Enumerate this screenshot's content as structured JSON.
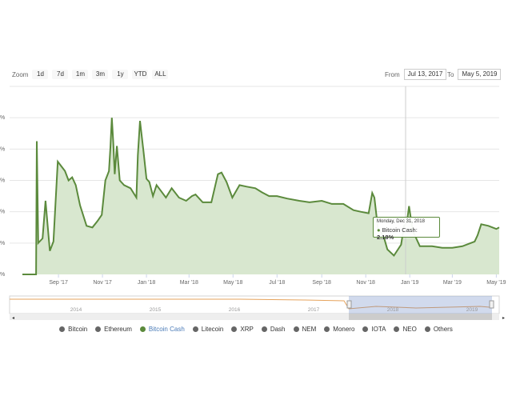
{
  "zoom": {
    "label": "Zoom",
    "buttons": [
      "1d",
      "7d",
      "1m",
      "3m",
      "1y",
      "YTD",
      "ALL"
    ]
  },
  "range": {
    "from_label": "From",
    "from_value": "Jul 13, 2017",
    "to_label": "To",
    "to_value": "May 5, 2019"
  },
  "tooltip": {
    "date": "Monday, Dec 31, 2018",
    "series": "Bitcoin Cash",
    "value": "2.18%"
  },
  "legend": [
    {
      "name": "Bitcoin",
      "active": false
    },
    {
      "name": "Ethereum",
      "active": false
    },
    {
      "name": "Bitcoin Cash",
      "active": true
    },
    {
      "name": "Litecoin",
      "active": false
    },
    {
      "name": "XRP",
      "active": false
    },
    {
      "name": "Dash",
      "active": false
    },
    {
      "name": "NEM",
      "active": false
    },
    {
      "name": "Monero",
      "active": false
    },
    {
      "name": "IOTA",
      "active": false
    },
    {
      "name": "NEO",
      "active": false
    },
    {
      "name": "Others",
      "active": false
    }
  ],
  "colors": {
    "line": "#5b8a3c",
    "fill": "#d8e7cf",
    "legend_active": "#4a7bb7",
    "navigator_line": "#e6a35c"
  },
  "chart_data": {
    "type": "area",
    "series": [
      {
        "name": "Bitcoin Cash",
        "x": [
          "2017-07-13",
          "2017-08-01",
          "2017-08-02",
          "2017-08-04",
          "2017-08-10",
          "2017-08-14",
          "2017-08-20",
          "2017-08-25",
          "2017-08-31",
          "2017-09-05",
          "2017-09-10",
          "2017-09-15",
          "2017-09-20",
          "2017-09-25",
          "2017-10-01",
          "2017-10-10",
          "2017-10-18",
          "2017-10-25",
          "2017-10-31",
          "2017-11-05",
          "2017-11-10",
          "2017-11-12",
          "2017-11-14",
          "2017-11-16",
          "2017-11-18",
          "2017-11-21",
          "2017-11-25",
          "2017-12-01",
          "2017-12-10",
          "2017-12-18",
          "2017-12-20",
          "2017-12-23",
          "2017-12-28",
          "2018-01-01",
          "2018-01-05",
          "2018-01-10",
          "2018-01-15",
          "2018-01-20",
          "2018-01-28",
          "2018-02-05",
          "2018-02-15",
          "2018-02-25",
          "2018-03-05",
          "2018-03-10",
          "2018-03-20",
          "2018-04-01",
          "2018-04-10",
          "2018-04-15",
          "2018-04-22",
          "2018-04-30",
          "2018-05-10",
          "2018-05-20",
          "2018-06-01",
          "2018-06-10",
          "2018-06-20",
          "2018-07-01",
          "2018-07-15",
          "2018-08-01",
          "2018-08-15",
          "2018-09-01",
          "2018-09-15",
          "2018-10-01",
          "2018-10-15",
          "2018-10-25",
          "2018-11-05",
          "2018-11-10",
          "2018-11-13",
          "2018-11-15",
          "2018-11-18",
          "2018-11-22",
          "2018-11-26",
          "2018-12-01",
          "2018-12-10",
          "2018-12-20",
          "2018-12-24",
          "2018-12-28",
          "2018-12-31",
          "2019-01-05",
          "2019-01-15",
          "2019-02-01",
          "2019-02-15",
          "2019-03-01",
          "2019-03-15",
          "2019-04-01",
          "2019-04-05",
          "2019-04-10",
          "2019-04-20",
          "2019-05-01",
          "2019-05-05"
        ],
        "y": [
          0,
          0,
          4.25,
          1.0,
          1.15,
          2.35,
          0.75,
          1.05,
          3.6,
          3.45,
          3.3,
          3.0,
          3.1,
          2.85,
          2.2,
          1.55,
          1.5,
          1.7,
          1.9,
          3.0,
          3.3,
          4.05,
          5.0,
          4.2,
          3.2,
          4.1,
          3.0,
          2.85,
          2.75,
          2.45,
          3.8,
          4.9,
          3.9,
          3.05,
          2.95,
          2.5,
          2.85,
          2.7,
          2.45,
          2.75,
          2.45,
          2.35,
          2.5,
          2.55,
          2.3,
          2.3,
          3.2,
          3.25,
          2.95,
          2.45,
          2.85,
          2.8,
          2.75,
          2.62,
          2.5,
          2.5,
          2.42,
          2.35,
          2.3,
          2.35,
          2.25,
          2.25,
          2.05,
          2.0,
          1.95,
          2.6,
          2.45,
          2.05,
          1.45,
          1.35,
          1.2,
          0.8,
          0.6,
          0.95,
          1.55,
          1.65,
          2.18,
          1.4,
          0.9,
          0.9,
          0.85,
          0.85,
          0.9,
          1.05,
          1.25,
          1.6,
          1.55,
          1.45,
          1.5
        ]
      }
    ],
    "xticks": [
      "Sep '17",
      "Nov '17",
      "Jan '18",
      "Mar '18",
      "May '18",
      "Jul '18",
      "Sep '18",
      "Nov '18",
      "Jan '19",
      "Mar '19",
      "May '19"
    ],
    "yticks_suffix": "%",
    "navigator_years": [
      "2014",
      "2015",
      "2016",
      "2017",
      "2018",
      "2019"
    ],
    "grid": true
  }
}
